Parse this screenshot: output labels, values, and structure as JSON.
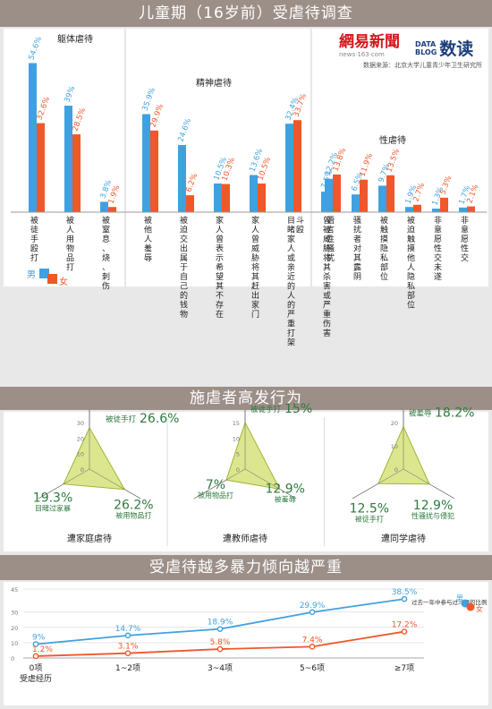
{
  "titles": {
    "section1": "儿童期（16岁前）受虐待调查",
    "section2": "施虐者高发行为",
    "section3": "受虐待越多暴力倾向越严重"
  },
  "branding": {
    "netease_logo": "網易新聞",
    "netease_url": "news·163·com",
    "datablog_top": "DATA",
    "datablog_bottom": "BLOG",
    "datablog_cn": "数读",
    "source": "数据来源：北京大学儿童青少年卫生研究所"
  },
  "colors": {
    "male": "#3fa1e0",
    "female": "#f0572a",
    "radar_fill": "#dbe58a",
    "radar_stroke": "#9ab22e",
    "radar_text": "#2e7a3e",
    "banner": "#9c8f88"
  },
  "legend": {
    "male": "男",
    "female": "女"
  },
  "chart_data": [
    {
      "type": "bar",
      "groups": [
        {
          "title": "躯体虐待",
          "categories": [
            "被徒手殴打",
            "被人用物品打",
            "被窒息、烧、刺伤"
          ],
          "male": [
            54.6,
            39,
            3.8
          ],
          "female": [
            32.6,
            28.5,
            1.9
          ]
        },
        {
          "title": "精神虐待",
          "categories": [
            "被他人羞辱",
            "被迫交出属于自己的钱物",
            "家人曾表示希望其不存在",
            "家人曾威胁将其赶出家门",
            "目睹家人或亲近的人的严重打架斗殴",
            "曾被威胁将其杀害或严重伤害"
          ],
          "male": [
            35.9,
            24.6,
            10.5,
            13.6,
            32.4,
            7.5
          ],
          "female": [
            29.9,
            6.2,
            10.3,
            10.5,
            33.7,
            2.4
          ]
        },
        {
          "title": "性虐待",
          "categories": [
            "语言性骚扰",
            "骚扰者对其露阴",
            "被触摸隐私部位",
            "被迫触摸他人隐私部位",
            "非意愿性交未遂",
            "非意愿性交"
          ],
          "male": [
            12.2,
            6.5,
            9.7,
            1.9,
            1.3,
            1.7
          ],
          "female": [
            13.8,
            11.9,
            13.5,
            2.7,
            5.3,
            2.1
          ]
        }
      ]
    },
    {
      "type": "radar",
      "charts": [
        {
          "title": "遭家庭虐待",
          "axis_max": 30,
          "ticks": [
            "30",
            "20",
            "10",
            "0"
          ],
          "values": [
            26.6,
            26.2,
            19.3
          ],
          "labels": [
            "被徒手打",
            "被用物品打",
            "目睹过家暴"
          ],
          "value_labels": [
            "26.6%",
            "26.2%",
            "19.3%"
          ]
        },
        {
          "title": "遭教师虐待",
          "axis_max": 15,
          "ticks": [
            "15",
            "10",
            "5",
            "0"
          ],
          "values": [
            15,
            12.9,
            7
          ],
          "labels": [
            "被徒手打",
            "被羞辱",
            "被用物品打"
          ],
          "value_labels": [
            "15%",
            "12.9%",
            "7%"
          ]
        },
        {
          "title": "遭同学虐待",
          "axis_max": 20,
          "ticks": [
            "20",
            "10",
            "0"
          ],
          "values": [
            18.2,
            12.9,
            12.5
          ],
          "labels": [
            "被羞辱",
            "性骚扰与侵犯",
            "被徒手打"
          ],
          "value_labels": [
            "18.2%",
            "12.9%",
            "12.5%"
          ]
        }
      ]
    },
    {
      "type": "line",
      "categories": [
        "0项",
        "1~2项",
        "3~4项",
        "5~6项",
        "≥7项"
      ],
      "category_note": "受虐经历",
      "ylim": [
        0,
        45
      ],
      "yticks": [
        "45",
        "30",
        "20",
        "10",
        "0"
      ],
      "series": [
        {
          "name": "男",
          "values": [
            9,
            14.7,
            18.9,
            29.9,
            38.5
          ],
          "labels": [
            "9%",
            "14.7%",
            "18.9%",
            "29.9%",
            "38.5%"
          ]
        },
        {
          "name": "女",
          "values": [
            1.2,
            3.1,
            5.8,
            7.4,
            17.2
          ],
          "labels": [
            "1.2%",
            "3.1%",
            "5.8%",
            "7.4%",
            "17.2%"
          ]
        }
      ],
      "annotation": "过去一年中参与过斗殴的比例"
    }
  ]
}
